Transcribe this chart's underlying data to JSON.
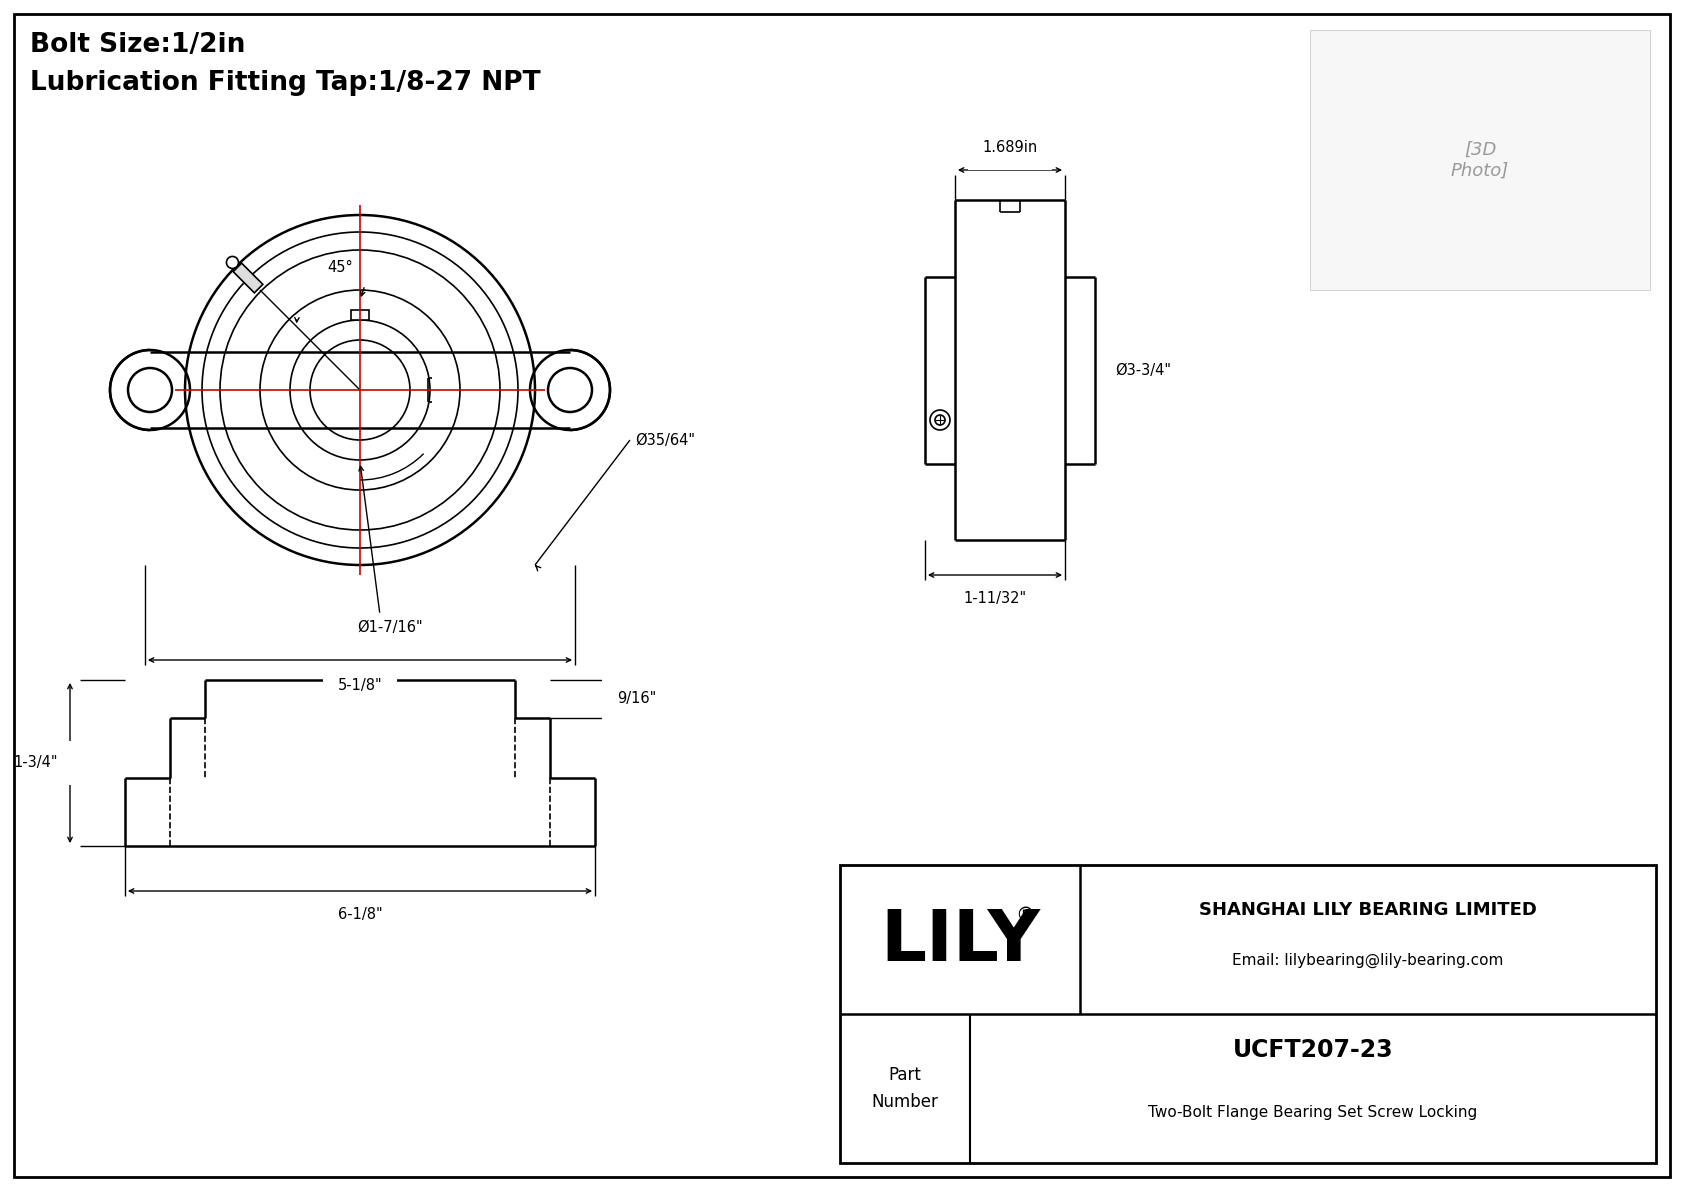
{
  "bg_color": "#ffffff",
  "line_color": "#000000",
  "red_color": "#cc0000",
  "title_line1": "Bolt Size:1/2in",
  "title_line2": "Lubrication Fitting Tap:1/8-27 NPT",
  "company_name": "SHANGHAI LILY BEARING LIMITED",
  "email": "Email: lilybearing@lily-bearing.com",
  "part_label": "Part\nNumber",
  "part_number": "UCFT207-23",
  "part_desc": "Two-Bolt Flange Bearing Set Screw Locking",
  "lily_text": "LILY",
  "dim_bolt_size": "5-1/8\"",
  "dim_bore": "Ø1-7/16\"",
  "dim_outer": "Ø35/64\"",
  "dim_angle": "45°",
  "dim_side_width": "1.689in",
  "dim_side_height": "Ø3-3/4\"",
  "dim_side_depth": "1-11/32\"",
  "dim_front_height": "1-3/4\"",
  "dim_front_width": "6-1/8\"",
  "dim_front_top": "9/16\""
}
